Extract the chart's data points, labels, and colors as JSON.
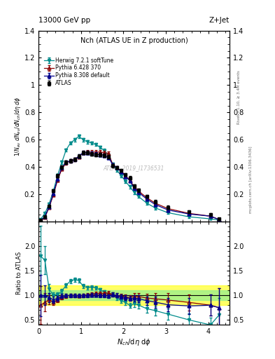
{
  "title_top": "13000 GeV pp",
  "title_top_right": "Z+Jet",
  "plot_title": "Nch (ATLAS UE in Z production)",
  "ylabel_main": "1/N$_{ev}$ dN$_{ev}$/dN$_{ch}$/dη dφ",
  "ylabel_ratio": "Ratio to ATLAS",
  "xlabel": "N$_{ch}$/dη dφ",
  "right_label_top": "Rivet 3.1.10, ≥ 3.4M events",
  "right_label_bottom": "mcplots.cern.ch [arXiv:1306.3436]",
  "watermark": "ATLAS_2019_I1736531",
  "ylim_main": [
    0,
    1.4
  ],
  "ylim_ratio": [
    0.4,
    2.5
  ],
  "xlim": [
    0,
    4.5
  ],
  "yticks_main": [
    0.2,
    0.4,
    0.6,
    0.8,
    1.0,
    1.2,
    1.4
  ],
  "yticks_ratio": [
    0.5,
    1.0,
    1.5,
    2.0
  ],
  "atlas_x": [
    0.05,
    0.15,
    0.25,
    0.35,
    0.45,
    0.55,
    0.65,
    0.75,
    0.85,
    0.95,
    1.05,
    1.15,
    1.25,
    1.35,
    1.45,
    1.55,
    1.65,
    1.75,
    1.85,
    1.95,
    2.05,
    2.15,
    2.25,
    2.35,
    2.55,
    2.75,
    3.05,
    3.55,
    4.05,
    4.25
  ],
  "atlas_y": [
    0.01,
    0.035,
    0.115,
    0.225,
    0.335,
    0.4,
    0.435,
    0.445,
    0.455,
    0.48,
    0.505,
    0.505,
    0.495,
    0.49,
    0.49,
    0.485,
    0.475,
    0.41,
    0.395,
    0.375,
    0.345,
    0.32,
    0.26,
    0.23,
    0.185,
    0.145,
    0.105,
    0.07,
    0.05,
    0.02
  ],
  "atlas_yerr": [
    0.003,
    0.005,
    0.008,
    0.01,
    0.012,
    0.012,
    0.012,
    0.012,
    0.012,
    0.012,
    0.012,
    0.012,
    0.012,
    0.012,
    0.012,
    0.012,
    0.012,
    0.012,
    0.012,
    0.012,
    0.012,
    0.012,
    0.012,
    0.012,
    0.012,
    0.012,
    0.012,
    0.01,
    0.01,
    0.008
  ],
  "herwig_x": [
    0.05,
    0.15,
    0.25,
    0.35,
    0.45,
    0.55,
    0.65,
    0.75,
    0.85,
    0.95,
    1.05,
    1.15,
    1.25,
    1.35,
    1.45,
    1.55,
    1.65,
    1.75,
    1.85,
    1.95,
    2.05,
    2.15,
    2.25,
    2.35,
    2.55,
    2.75,
    3.05,
    3.55,
    4.05,
    4.25
  ],
  "herwig_y": [
    0.018,
    0.06,
    0.13,
    0.225,
    0.34,
    0.435,
    0.525,
    0.575,
    0.6,
    0.625,
    0.6,
    0.585,
    0.575,
    0.565,
    0.545,
    0.52,
    0.485,
    0.42,
    0.375,
    0.335,
    0.295,
    0.255,
    0.215,
    0.185,
    0.135,
    0.1,
    0.065,
    0.035,
    0.02,
    0.012
  ],
  "herwig_yerr": [
    0.003,
    0.005,
    0.008,
    0.01,
    0.012,
    0.012,
    0.012,
    0.012,
    0.012,
    0.012,
    0.012,
    0.012,
    0.012,
    0.012,
    0.012,
    0.012,
    0.012,
    0.012,
    0.012,
    0.012,
    0.012,
    0.012,
    0.012,
    0.012,
    0.012,
    0.012,
    0.01,
    0.008,
    0.006,
    0.005
  ],
  "pythia6_x": [
    0.05,
    0.15,
    0.25,
    0.35,
    0.45,
    0.55,
    0.65,
    0.75,
    0.85,
    0.95,
    1.05,
    1.15,
    1.25,
    1.35,
    1.45,
    1.55,
    1.65,
    1.75,
    1.85,
    1.95,
    2.05,
    2.15,
    2.25,
    2.35,
    2.55,
    2.75,
    3.05,
    3.55,
    4.05,
    4.25
  ],
  "pythia6_y": [
    0.008,
    0.03,
    0.105,
    0.195,
    0.305,
    0.385,
    0.43,
    0.445,
    0.455,
    0.475,
    0.505,
    0.51,
    0.51,
    0.51,
    0.51,
    0.505,
    0.5,
    0.415,
    0.395,
    0.37,
    0.335,
    0.305,
    0.255,
    0.225,
    0.175,
    0.135,
    0.095,
    0.06,
    0.04,
    0.015
  ],
  "pythia6_yerr": [
    0.003,
    0.005,
    0.008,
    0.01,
    0.012,
    0.012,
    0.012,
    0.012,
    0.012,
    0.012,
    0.012,
    0.012,
    0.012,
    0.012,
    0.012,
    0.012,
    0.012,
    0.012,
    0.012,
    0.012,
    0.012,
    0.012,
    0.012,
    0.012,
    0.012,
    0.012,
    0.01,
    0.008,
    0.007,
    0.005
  ],
  "pythia8_x": [
    0.05,
    0.15,
    0.25,
    0.35,
    0.45,
    0.55,
    0.65,
    0.75,
    0.85,
    0.95,
    1.05,
    1.15,
    1.25,
    1.35,
    1.45,
    1.55,
    1.65,
    1.75,
    1.85,
    1.95,
    2.05,
    2.15,
    2.25,
    2.35,
    2.55,
    2.75,
    3.05,
    3.55,
    4.05,
    4.25
  ],
  "pythia8_y": [
    0.01,
    0.035,
    0.11,
    0.205,
    0.315,
    0.395,
    0.435,
    0.445,
    0.455,
    0.48,
    0.505,
    0.505,
    0.5,
    0.495,
    0.49,
    0.485,
    0.47,
    0.415,
    0.395,
    0.365,
    0.33,
    0.3,
    0.245,
    0.215,
    0.165,
    0.125,
    0.085,
    0.055,
    0.04,
    0.015
  ],
  "pythia8_yerr": [
    0.003,
    0.005,
    0.008,
    0.01,
    0.012,
    0.012,
    0.012,
    0.012,
    0.012,
    0.012,
    0.012,
    0.012,
    0.012,
    0.012,
    0.012,
    0.012,
    0.012,
    0.012,
    0.012,
    0.012,
    0.012,
    0.012,
    0.012,
    0.012,
    0.012,
    0.012,
    0.01,
    0.008,
    0.007,
    0.005
  ],
  "color_atlas": "#000000",
  "color_herwig": "#008B8B",
  "color_pythia6": "#8B0000",
  "color_pythia8": "#00008B",
  "band_green": [
    0.9,
    1.1
  ],
  "band_yellow": [
    0.8,
    1.2
  ]
}
